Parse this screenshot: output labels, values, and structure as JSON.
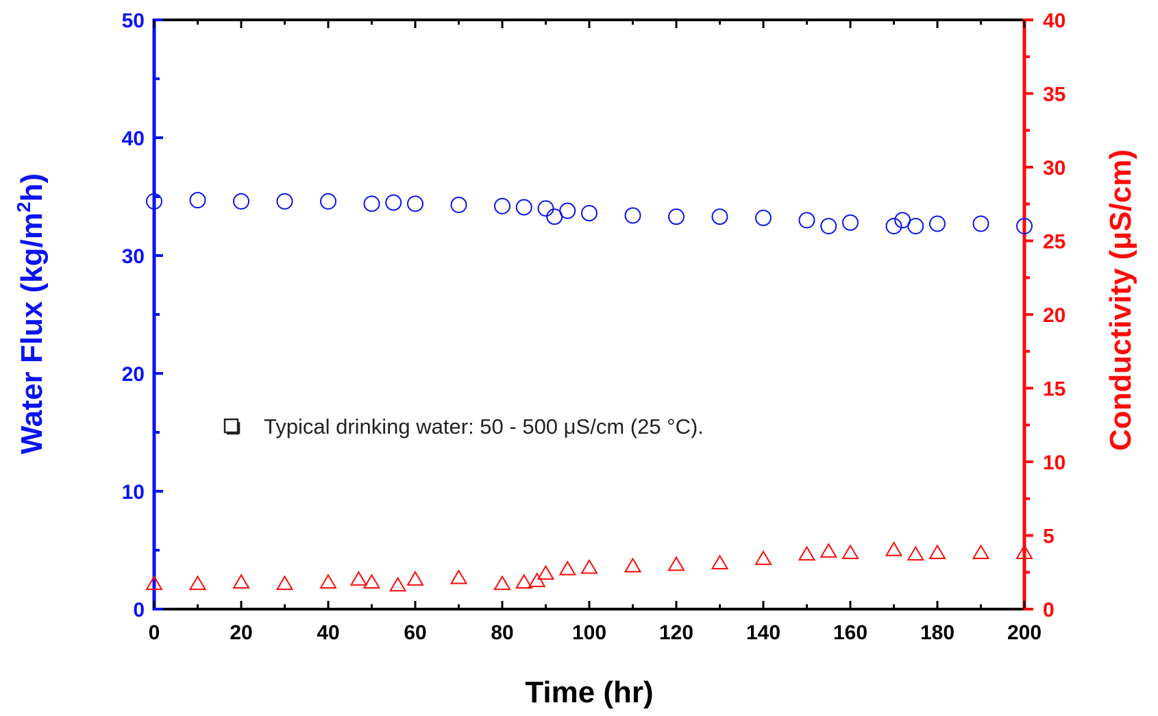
{
  "colors": {
    "left_axis": "#0a14f0",
    "right_axis": "#ff0a0a",
    "frame": "#000000",
    "flux_series": "#0a14f0",
    "conductivity_series": "#ff0a0a"
  },
  "note": {
    "icon": "hollow-square-bullet-icon",
    "text": "Typical drinking water: 50 - 500 μS/cm (25 °C)."
  },
  "chart_data": {
    "type": "scatter",
    "xlabel": "Time (hr)",
    "ylabel_left": {
      "main": "Water Flux (kg/m",
      "sup": "2",
      "end": "h)"
    },
    "ylabel_right": "Conductivity (μS/cm)",
    "xlim": [
      0,
      200
    ],
    "ylim_left": [
      0,
      50
    ],
    "ylim_right": [
      0,
      40
    ],
    "xticks": [
      0,
      20,
      40,
      60,
      80,
      100,
      120,
      140,
      160,
      180,
      200
    ],
    "yticks_left": [
      0,
      10,
      20,
      30,
      40,
      50
    ],
    "yticks_right": [
      0,
      5,
      10,
      15,
      20,
      25,
      30,
      35,
      40
    ],
    "grid": false,
    "series": [
      {
        "axis": "left",
        "marker": "circle",
        "x": [
          0,
          10,
          20,
          30,
          40,
          50,
          55,
          60,
          70,
          80,
          85,
          90,
          92,
          95,
          100,
          110,
          120,
          130,
          140,
          150,
          155,
          160,
          170,
          172,
          175,
          180,
          190,
          200
        ],
        "y": [
          34.6,
          34.7,
          34.6,
          34.6,
          34.6,
          34.4,
          34.5,
          34.4,
          34.3,
          34.2,
          34.1,
          34.0,
          33.3,
          33.8,
          33.6,
          33.4,
          33.3,
          33.3,
          33.2,
          33.0,
          32.5,
          32.8,
          32.5,
          33.0,
          32.5,
          32.7,
          32.7,
          32.5
        ]
      },
      {
        "axis": "right",
        "marker": "triangle",
        "x": [
          0,
          10,
          20,
          30,
          40,
          47,
          50,
          56,
          60,
          70,
          80,
          85,
          88,
          90,
          95,
          100,
          110,
          120,
          130,
          140,
          150,
          155,
          160,
          170,
          175,
          180,
          190,
          200
        ],
        "y": [
          1.7,
          1.7,
          1.8,
          1.7,
          1.8,
          2.0,
          1.8,
          1.6,
          2.0,
          2.1,
          1.7,
          1.8,
          1.9,
          2.4,
          2.7,
          2.8,
          2.9,
          3.0,
          3.1,
          3.4,
          3.7,
          3.9,
          3.8,
          4.0,
          3.7,
          3.8,
          3.8,
          3.8
        ]
      }
    ]
  }
}
